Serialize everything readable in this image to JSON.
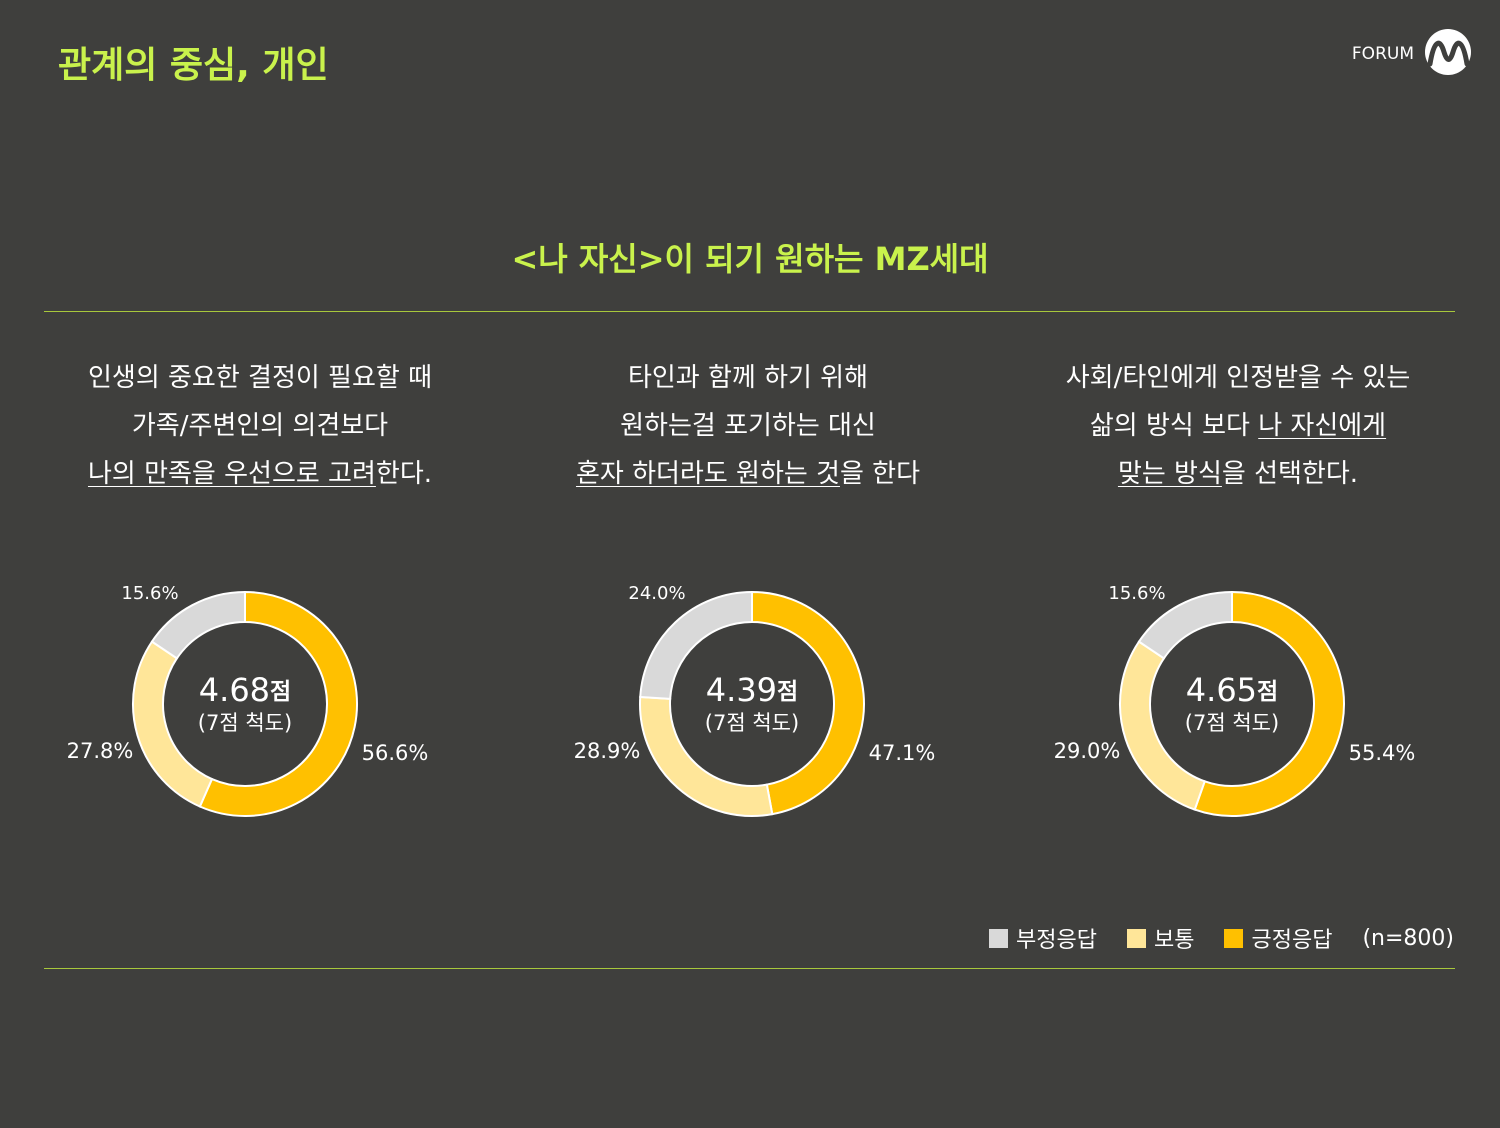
{
  "header": {
    "title": "관계의 중심, 개인",
    "brand": "FORUM"
  },
  "subtitle": "<나 자신>이 되기 원하는 MZ세대",
  "legend": {
    "categories": [
      "부정응답",
      "보통",
      "긍정응답"
    ],
    "colors": [
      "#d9d9d9",
      "#ffe699",
      "#ffc000"
    ],
    "note": "(n=800)"
  },
  "chart_data": [
    {
      "type": "donut",
      "statement": [
        [
          {
            "text": "인생의 중요한 결정이 필요할 때",
            "underline": false
          }
        ],
        [
          {
            "text": "가족/주변인의 의견보다",
            "underline": false
          }
        ],
        [
          {
            "text": "나의 만족을 우선으로 고려",
            "underline": true
          },
          {
            "text": "한다.",
            "underline": false
          }
        ]
      ],
      "center_value": 4.68,
      "center_unit": "점",
      "center_note": "(7점 척도)",
      "values": [
        15.6,
        27.8,
        56.6
      ],
      "value_labels": [
        "15.6%",
        "27.8%",
        "56.6%"
      ]
    },
    {
      "type": "donut",
      "statement": [
        [
          {
            "text": "타인과 함께 하기 위해",
            "underline": false
          }
        ],
        [
          {
            "text": "원하는걸 포기하는 대신",
            "underline": false
          }
        ],
        [
          {
            "text": "혼자 하더라도 원하는 것",
            "underline": true
          },
          {
            "text": "을 한다",
            "underline": false
          }
        ]
      ],
      "center_value": 4.39,
      "center_unit": "점",
      "center_note": "(7점 척도)",
      "values": [
        24.0,
        28.9,
        47.1
      ],
      "value_labels": [
        "24.0%",
        "28.9%",
        "47.1%"
      ]
    },
    {
      "type": "donut",
      "statement": [
        [
          {
            "text": "사회/타인에게 인정받을 수 있는",
            "underline": false
          }
        ],
        [
          {
            "text": "삶의 방식 보다 ",
            "underline": false
          },
          {
            "text": "나 자신에게",
            "underline": true
          }
        ],
        [
          {
            "text": "맞는 방식",
            "underline": true
          },
          {
            "text": "을 선택한다.",
            "underline": false
          }
        ]
      ],
      "center_value": 4.65,
      "center_unit": "점",
      "center_note": "(7점 척도)",
      "values": [
        15.6,
        29.0,
        55.4
      ],
      "value_labels": [
        "15.6%",
        "29.0%",
        "55.4%"
      ]
    }
  ]
}
